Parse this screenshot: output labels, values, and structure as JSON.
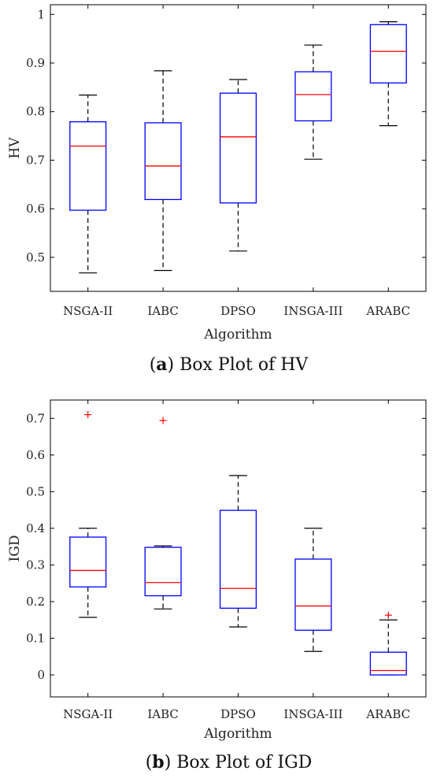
{
  "chart_data": [
    {
      "type": "box",
      "caption_letter": "a",
      "caption_text": "Box Plot of HV",
      "xlabel": "Algorithm",
      "ylabel": "HV",
      "ylim": [
        0.43,
        1.02
      ],
      "yticks": [
        0.5,
        0.6,
        0.7,
        0.8,
        0.9,
        1
      ],
      "ytick_labels": [
        "0.5",
        "0.6",
        "0.7",
        "0.8",
        "0.9",
        "1"
      ],
      "categories": [
        "NSGA-II",
        "IABC",
        "DPSO",
        "INSGA-III",
        "ARABC"
      ],
      "boxes": [
        {
          "min": 0.468,
          "q1": 0.597,
          "median": 0.729,
          "q3": 0.779,
          "max": 0.834,
          "outliers": []
        },
        {
          "min": 0.473,
          "q1": 0.619,
          "median": 0.688,
          "q3": 0.777,
          "max": 0.884,
          "outliers": []
        },
        {
          "min": 0.513,
          "q1": 0.612,
          "median": 0.748,
          "q3": 0.838,
          "max": 0.866,
          "outliers": []
        },
        {
          "min": 0.702,
          "q1": 0.781,
          "median": 0.835,
          "q3": 0.882,
          "max": 0.937,
          "outliers": []
        },
        {
          "min": 0.771,
          "q1": 0.859,
          "median": 0.924,
          "q3": 0.979,
          "max": 0.985,
          "outliers": []
        }
      ]
    },
    {
      "type": "box",
      "caption_letter": "b",
      "caption_text": "Box Plot of IGD",
      "xlabel": "Algorithm",
      "ylabel": "IGD",
      "ylim": [
        -0.06,
        0.75
      ],
      "yticks": [
        0,
        0.1,
        0.2,
        0.3,
        0.4,
        0.5,
        0.6,
        0.7
      ],
      "ytick_labels": [
        "0",
        "0.1",
        "0.2",
        "0.3",
        "0.4",
        "0.5",
        "0.6",
        "0.7"
      ],
      "categories": [
        "NSGA-II",
        "IABC",
        "DPSO",
        "INSGA-III",
        "ARABC"
      ],
      "boxes": [
        {
          "min": 0.157,
          "q1": 0.24,
          "median": 0.285,
          "q3": 0.376,
          "max": 0.4,
          "outliers": [
            0.71
          ]
        },
        {
          "min": 0.18,
          "q1": 0.216,
          "median": 0.252,
          "q3": 0.348,
          "max": 0.352,
          "outliers": [
            0.694
          ]
        },
        {
          "min": 0.131,
          "q1": 0.182,
          "median": 0.236,
          "q3": 0.449,
          "max": 0.544,
          "outliers": []
        },
        {
          "min": 0.064,
          "q1": 0.122,
          "median": 0.188,
          "q3": 0.316,
          "max": 0.4,
          "outliers": []
        },
        {
          "min": 0.0,
          "q1": 0.0,
          "median": 0.012,
          "q3": 0.062,
          "max": 0.15,
          "outliers": [
            0.163
          ]
        }
      ]
    }
  ],
  "colors": {
    "box": "#0000ff",
    "median": "#ff0000",
    "whisker": "#000000",
    "outlier": "#ff0000"
  }
}
